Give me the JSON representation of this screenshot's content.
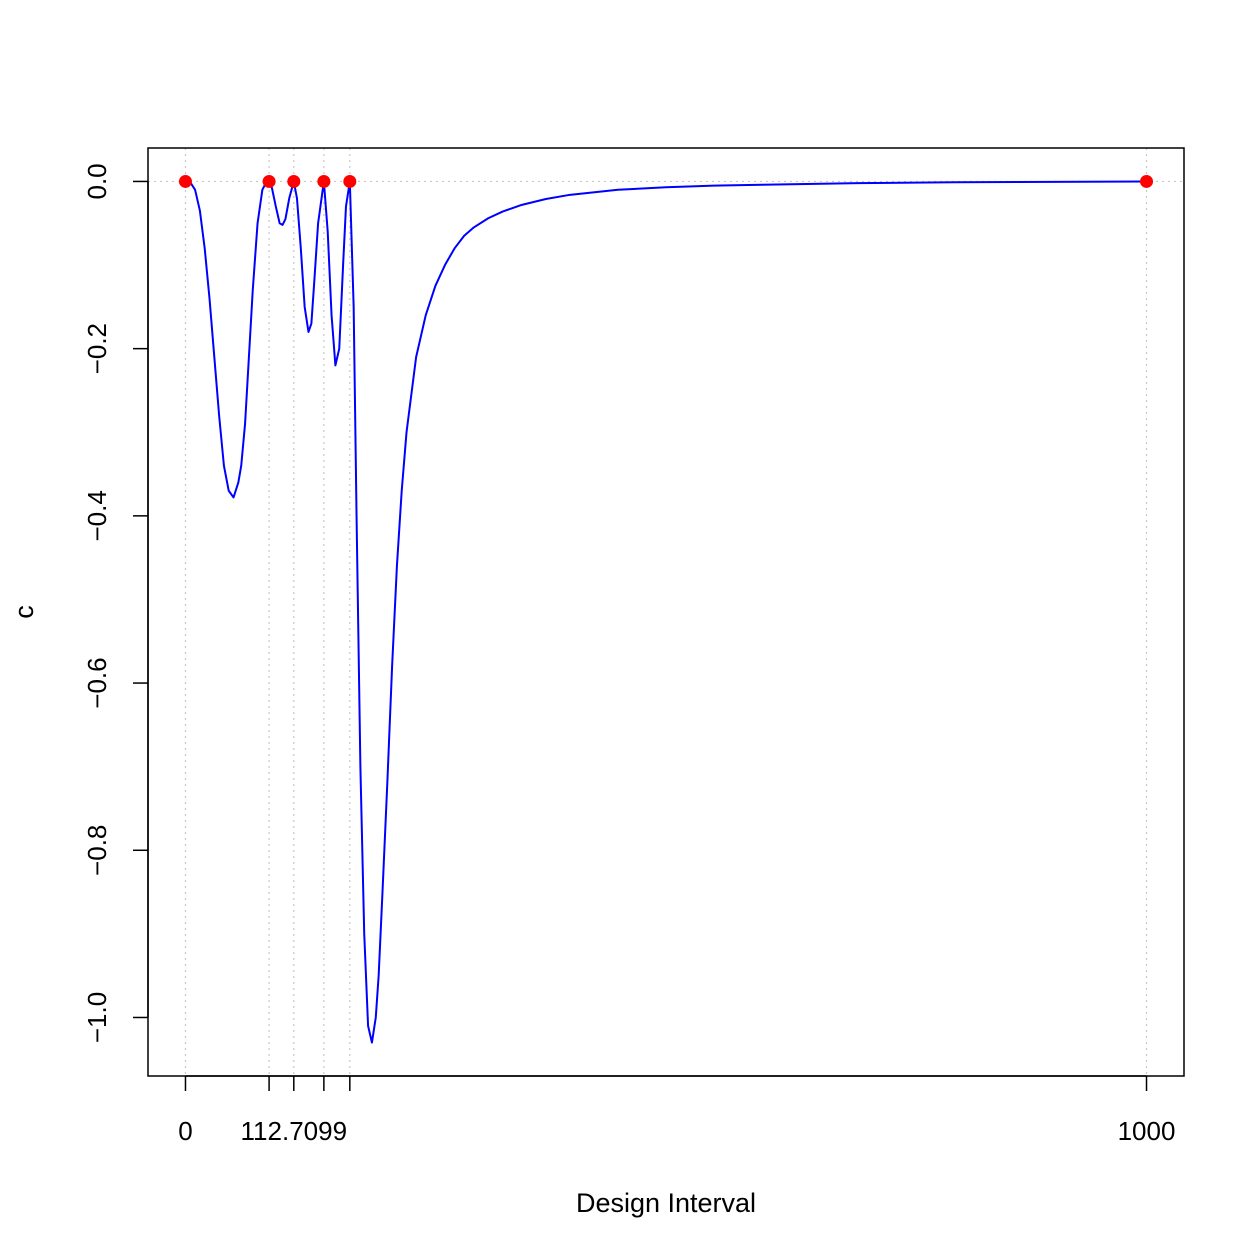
{
  "chart_data": {
    "type": "line",
    "title": "",
    "xlabel": "Design Interval",
    "ylabel": "c",
    "xlim": [
      -39,
      1039
    ],
    "ylim": [
      -1.07,
      0.04
    ],
    "x_ticks": [
      {
        "value": 0,
        "label": "0"
      },
      {
        "value": 87,
        "label": ""
      },
      {
        "value": 112.7099,
        "label": "112.7099"
      },
      {
        "value": 144,
        "label": ""
      },
      {
        "value": 171,
        "label": ""
      },
      {
        "value": 1000,
        "label": "1000"
      }
    ],
    "y_ticks": [
      {
        "value": 0.0,
        "label": "0.0"
      },
      {
        "value": -0.2,
        "label": "−0.2"
      },
      {
        "value": -0.4,
        "label": "−0.4"
      },
      {
        "value": -0.6,
        "label": "−0.6"
      },
      {
        "value": -0.8,
        "label": "−0.8"
      },
      {
        "value": -1.0,
        "label": "−1.0"
      }
    ],
    "grid": {
      "horizontal_at": [
        0.0
      ],
      "vertical_at": [
        0,
        87,
        112.7099,
        144,
        171,
        1000
      ],
      "style": "dotted"
    },
    "series": [
      {
        "color": "#0000ff",
        "x": [
          0,
          5,
          10,
          15,
          20,
          25,
          30,
          35,
          40,
          45,
          50,
          55,
          58,
          62,
          66,
          70,
          75,
          80,
          84,
          87,
          90,
          94,
          98,
          101,
          104,
          108,
          112.7,
          116,
          120,
          124,
          128,
          131,
          134,
          138,
          144,
          148,
          152,
          156,
          160,
          164,
          167,
          171,
          175,
          178,
          182,
          186,
          190,
          194,
          198,
          201,
          205,
          210,
          215,
          220,
          225,
          230,
          240,
          250,
          260,
          270,
          280,
          290,
          300,
          315,
          330,
          350,
          375,
          400,
          450,
          500,
          550,
          600,
          700,
          800,
          900,
          1000
        ],
        "y": [
          0,
          -0.001,
          -0.01,
          -0.035,
          -0.08,
          -0.14,
          -0.21,
          -0.28,
          -0.34,
          -0.37,
          -0.378,
          -0.36,
          -0.34,
          -0.29,
          -0.21,
          -0.13,
          -0.05,
          -0.01,
          -0.001,
          0,
          -0.008,
          -0.03,
          -0.05,
          -0.052,
          -0.045,
          -0.02,
          0,
          -0.02,
          -0.08,
          -0.15,
          -0.18,
          -0.17,
          -0.12,
          -0.05,
          0,
          -0.06,
          -0.16,
          -0.22,
          -0.2,
          -0.1,
          -0.03,
          0,
          -0.15,
          -0.4,
          -0.7,
          -0.9,
          -1.01,
          -1.03,
          -1.0,
          -0.95,
          -0.85,
          -0.72,
          -0.58,
          -0.46,
          -0.37,
          -0.3,
          -0.21,
          -0.16,
          -0.125,
          -0.1,
          -0.08,
          -0.065,
          -0.055,
          -0.044,
          -0.036,
          -0.028,
          -0.021,
          -0.016,
          -0.01,
          -0.007,
          -0.005,
          -0.004,
          -0.002,
          -0.001,
          -0.0005,
          0
        ]
      },
      {
        "color": "#ff0000",
        "mode": "points",
        "x": [
          0,
          87,
          112.7099,
          144,
          171,
          1000
        ],
        "y": [
          0,
          0,
          0,
          0,
          0,
          0
        ]
      }
    ]
  }
}
